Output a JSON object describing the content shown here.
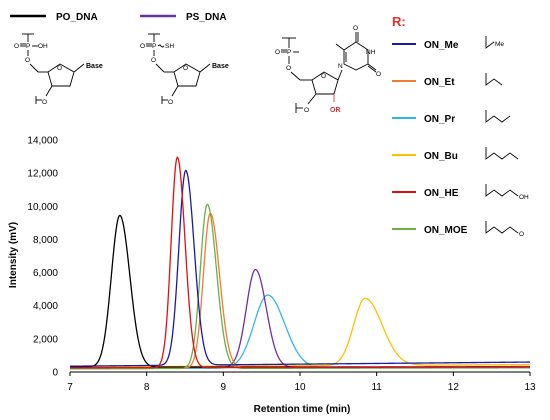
{
  "colors": {
    "PO_DNA": "#000000",
    "PS_DNA": "#7030a0",
    "ON_Me": "#1a1aa8",
    "ON_Et": "#ed7d31",
    "ON_Pr": "#33b5e5",
    "ON_Bu": "#ffc000",
    "ON_HE": "#e01010",
    "ON_MOE": "#70ad47",
    "r_label": "#e03030"
  },
  "top_legend": {
    "po_dna": "PO_DNA",
    "ps_dna": "PS_DNA"
  },
  "structures": {
    "po": {
      "p": "P",
      "o_top": "O",
      "oh": "OH",
      "o_ring": "O",
      "base": "Base",
      "o_link": "O",
      "o_3p": "O"
    },
    "ps": {
      "p": "P",
      "o_top": "O",
      "sh": "SH",
      "o_ring": "O",
      "base": "Base",
      "o_link": "O",
      "o_3p": "O"
    },
    "modified": {
      "p": "P",
      "o_top": "O",
      "o_link": "O",
      "o_ring": "O",
      "n1": "N",
      "nh": "NH",
      "o_c4": "O",
      "o_c2": "O",
      "o_3p": "O",
      "or": "OR"
    }
  },
  "r_legend": {
    "title": "R:",
    "items": [
      {
        "key": "ON_Me",
        "label": "ON_Me",
        "substituent": "Me"
      },
      {
        "key": "ON_Et",
        "label": "ON_Et",
        "substituent": ""
      },
      {
        "key": "ON_Pr",
        "label": "ON_Pr",
        "substituent": ""
      },
      {
        "key": "ON_Bu",
        "label": "ON_Bu",
        "substituent": ""
      },
      {
        "key": "ON_HE",
        "label": "ON_HE",
        "substituent": "OH"
      },
      {
        "key": "ON_MOE",
        "label": "ON_MOE",
        "substituent": "O"
      }
    ]
  },
  "chart_data": {
    "type": "line",
    "title": "",
    "xlabel": "Retention time (min)",
    "ylabel": "Intensity (mV)",
    "xlim": [
      7,
      13
    ],
    "ylim": [
      0,
      14000
    ],
    "x_ticks": [
      "7",
      "8",
      "9",
      "10",
      "11",
      "12",
      "13"
    ],
    "y_ticks": [
      "0",
      "2,000",
      "4,000",
      "6,000",
      "8,000",
      "10,000",
      "12,000",
      "14,000"
    ],
    "grid": false,
    "series": [
      {
        "name": "PO_DNA",
        "baseline": 300,
        "drift": 0,
        "peaks": [
          {
            "rt": 7.65,
            "height": 9150,
            "sigma_left": 0.11,
            "sigma_right": 0.13
          }
        ]
      },
      {
        "name": "PS_DNA",
        "baseline": 250,
        "drift": 80,
        "peaks": [
          {
            "rt": 9.42,
            "height": 5900,
            "sigma_left": 0.12,
            "sigma_right": 0.14
          }
        ]
      },
      {
        "name": "ON_Me",
        "baseline": 350,
        "drift": 250,
        "peaks": [
          {
            "rt": 8.51,
            "height": 11750,
            "sigma_left": 0.09,
            "sigma_right": 0.11
          }
        ]
      },
      {
        "name": "ON_Et",
        "baseline": 200,
        "drift": 100,
        "peaks": [
          {
            "rt": 8.83,
            "height": 9350,
            "sigma_left": 0.09,
            "sigma_right": 0.12
          }
        ]
      },
      {
        "name": "ON_Pr",
        "baseline": 200,
        "drift": 100,
        "peaks": [
          {
            "rt": 9.58,
            "height": 4400,
            "sigma_left": 0.18,
            "sigma_right": 0.22
          }
        ]
      },
      {
        "name": "ON_Bu",
        "baseline": 300,
        "drift": 150,
        "peaks": [
          {
            "rt": 10.85,
            "height": 4050,
            "sigma_left": 0.15,
            "sigma_right": 0.22
          }
        ]
      },
      {
        "name": "ON_HE",
        "baseline": 250,
        "drift": 50,
        "peaks": [
          {
            "rt": 8.4,
            "height": 12700,
            "sigma_left": 0.08,
            "sigma_right": 0.1
          }
        ]
      },
      {
        "name": "ON_MOE",
        "baseline": 200,
        "drift": 50,
        "peaks": [
          {
            "rt": 8.79,
            "height": 9900,
            "sigma_left": 0.09,
            "sigma_right": 0.12
          }
        ]
      }
    ]
  }
}
